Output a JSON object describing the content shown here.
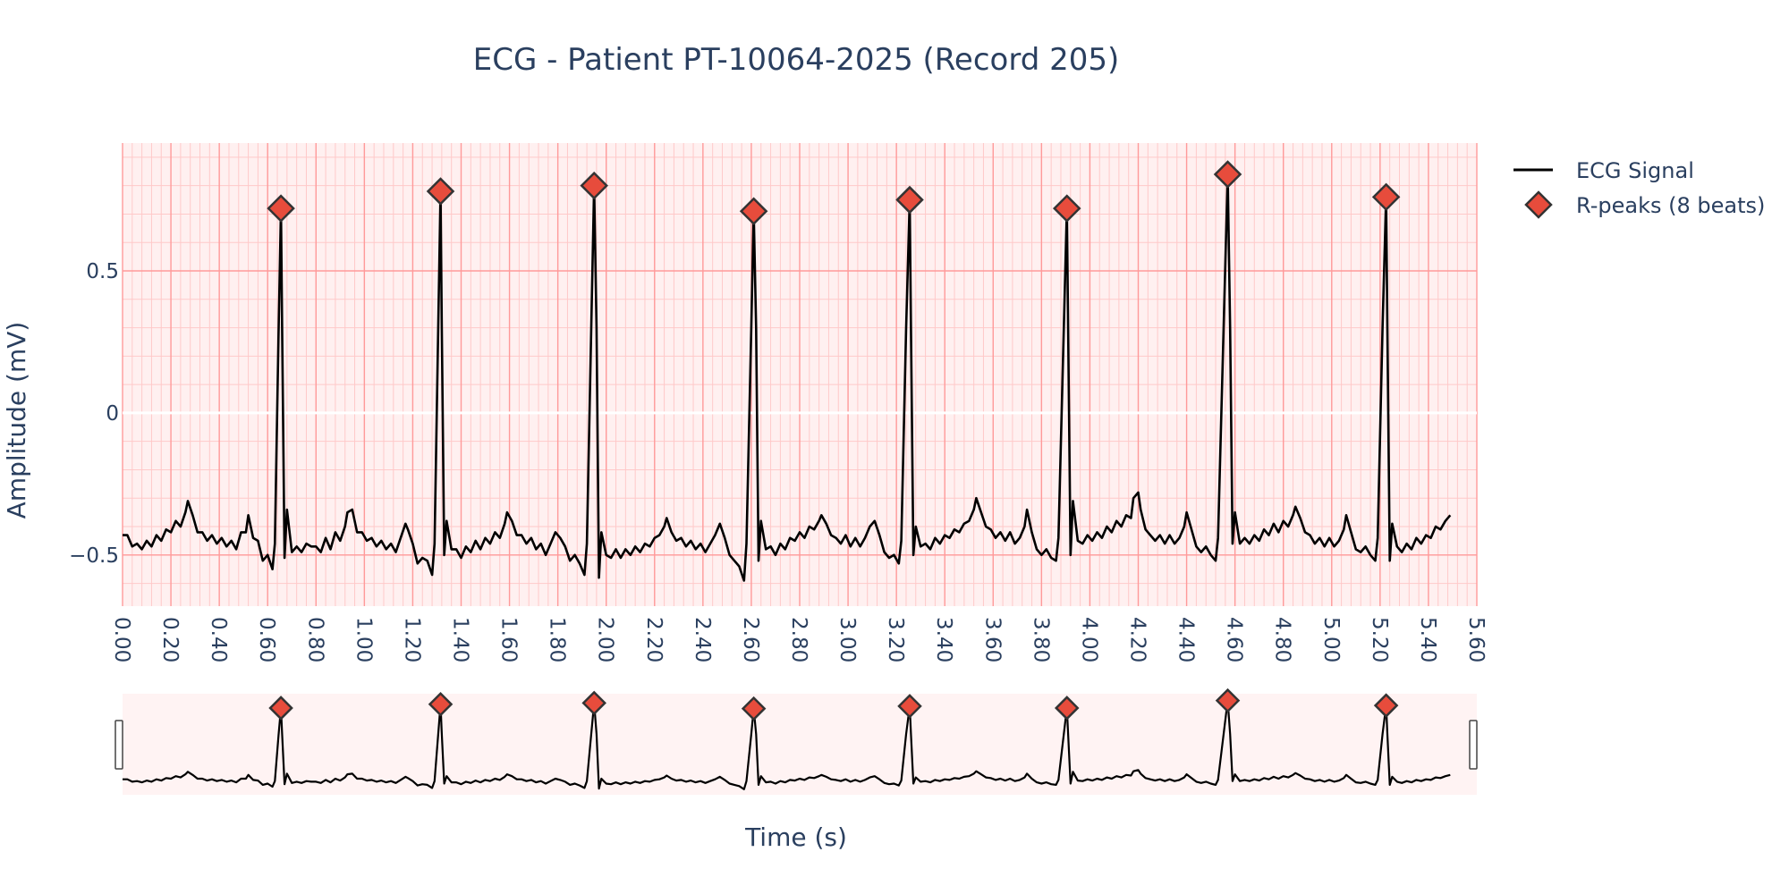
{
  "chart_data": {
    "type": "line",
    "title": "ECG - Patient PT-10064-2025 (Record 205)",
    "xlabel": "Time (s)",
    "ylabel": "Amplitude (mV)",
    "xlim": [
      0,
      5.6
    ],
    "ylim": [
      -0.68,
      0.95
    ],
    "x_tick_labels": [
      "0.00",
      "0.20",
      "0.40",
      "0.60",
      "0.80",
      "1.00",
      "1.20",
      "1.40",
      "1.60",
      "1.80",
      "2.00",
      "2.20",
      "2.40",
      "2.60",
      "2.80",
      "3.00",
      "3.20",
      "3.40",
      "3.60",
      "3.80",
      "4.00",
      "4.20",
      "4.40",
      "4.60",
      "4.80",
      "5.00",
      "5.20",
      "5.40",
      "5.60"
    ],
    "y_tick_labels": [
      "0.5",
      "0",
      "−0.5"
    ],
    "grid": true,
    "legend_position": "top-right",
    "range_slider": true,
    "colors": {
      "signal": "#000000",
      "marker_fill": "#e74c3c",
      "marker_edge": "#333333",
      "paper_grid_bg": "#fff0f0"
    },
    "series": [
      {
        "name": "ECG Signal",
        "type": "line",
        "points": [
          [
            0.0,
            -0.43
          ],
          [
            0.02,
            -0.43
          ],
          [
            0.04,
            -0.47
          ],
          [
            0.06,
            -0.46
          ],
          [
            0.08,
            -0.48
          ],
          [
            0.1,
            -0.45
          ],
          [
            0.12,
            -0.47
          ],
          [
            0.14,
            -0.43
          ],
          [
            0.16,
            -0.45
          ],
          [
            0.18,
            -0.41
          ],
          [
            0.2,
            -0.42
          ],
          [
            0.22,
            -0.38
          ],
          [
            0.24,
            -0.4
          ],
          [
            0.26,
            -0.35
          ],
          [
            0.27,
            -0.31
          ],
          [
            0.29,
            -0.36
          ],
          [
            0.31,
            -0.42
          ],
          [
            0.33,
            -0.42
          ],
          [
            0.35,
            -0.45
          ],
          [
            0.37,
            -0.43
          ],
          [
            0.39,
            -0.46
          ],
          [
            0.41,
            -0.44
          ],
          [
            0.43,
            -0.47
          ],
          [
            0.45,
            -0.45
          ],
          [
            0.47,
            -0.48
          ],
          [
            0.49,
            -0.42
          ],
          [
            0.51,
            -0.42
          ],
          [
            0.52,
            -0.36
          ],
          [
            0.54,
            -0.44
          ],
          [
            0.56,
            -0.45
          ],
          [
            0.58,
            -0.52
          ],
          [
            0.6,
            -0.5
          ],
          [
            0.62,
            -0.55
          ],
          [
            0.63,
            -0.46
          ],
          [
            0.645,
            0.28
          ],
          [
            0.655,
            0.72
          ],
          [
            0.66,
            0.3
          ],
          [
            0.67,
            -0.51
          ],
          [
            0.68,
            -0.34
          ],
          [
            0.7,
            -0.49
          ],
          [
            0.72,
            -0.47
          ],
          [
            0.74,
            -0.49
          ],
          [
            0.76,
            -0.46
          ],
          [
            0.78,
            -0.47
          ],
          [
            0.8,
            -0.47
          ],
          [
            0.82,
            -0.49
          ],
          [
            0.84,
            -0.44
          ],
          [
            0.86,
            -0.48
          ],
          [
            0.88,
            -0.42
          ],
          [
            0.9,
            -0.45
          ],
          [
            0.92,
            -0.4
          ],
          [
            0.93,
            -0.35
          ],
          [
            0.95,
            -0.34
          ],
          [
            0.97,
            -0.42
          ],
          [
            0.99,
            -0.42
          ],
          [
            1.01,
            -0.45
          ],
          [
            1.03,
            -0.44
          ],
          [
            1.05,
            -0.47
          ],
          [
            1.07,
            -0.45
          ],
          [
            1.09,
            -0.48
          ],
          [
            1.11,
            -0.46
          ],
          [
            1.13,
            -0.49
          ],
          [
            1.15,
            -0.44
          ],
          [
            1.17,
            -0.39
          ],
          [
            1.18,
            -0.41
          ],
          [
            1.2,
            -0.46
          ],
          [
            1.22,
            -0.53
          ],
          [
            1.24,
            -0.51
          ],
          [
            1.26,
            -0.52
          ],
          [
            1.28,
            -0.57
          ],
          [
            1.29,
            -0.46
          ],
          [
            1.305,
            0.28
          ],
          [
            1.315,
            0.78
          ],
          [
            1.32,
            0.3
          ],
          [
            1.33,
            -0.5
          ],
          [
            1.34,
            -0.38
          ],
          [
            1.36,
            -0.48
          ],
          [
            1.38,
            -0.48
          ],
          [
            1.4,
            -0.51
          ],
          [
            1.42,
            -0.47
          ],
          [
            1.44,
            -0.49
          ],
          [
            1.46,
            -0.45
          ],
          [
            1.48,
            -0.48
          ],
          [
            1.5,
            -0.44
          ],
          [
            1.52,
            -0.46
          ],
          [
            1.54,
            -0.42
          ],
          [
            1.56,
            -0.44
          ],
          [
            1.58,
            -0.39
          ],
          [
            1.59,
            -0.35
          ],
          [
            1.61,
            -0.38
          ],
          [
            1.63,
            -0.43
          ],
          [
            1.65,
            -0.43
          ],
          [
            1.67,
            -0.46
          ],
          [
            1.69,
            -0.44
          ],
          [
            1.71,
            -0.48
          ],
          [
            1.73,
            -0.46
          ],
          [
            1.75,
            -0.5
          ],
          [
            1.77,
            -0.46
          ],
          [
            1.79,
            -0.42
          ],
          [
            1.81,
            -0.44
          ],
          [
            1.83,
            -0.47
          ],
          [
            1.85,
            -0.52
          ],
          [
            1.87,
            -0.5
          ],
          [
            1.89,
            -0.53
          ],
          [
            1.91,
            -0.57
          ],
          [
            1.92,
            -0.46
          ],
          [
            1.95,
            0.8
          ],
          [
            1.96,
            0.3
          ],
          [
            1.97,
            -0.58
          ],
          [
            1.98,
            -0.42
          ],
          [
            2.0,
            -0.5
          ],
          [
            2.02,
            -0.51
          ],
          [
            2.04,
            -0.48
          ],
          [
            2.06,
            -0.51
          ],
          [
            2.08,
            -0.48
          ],
          [
            2.1,
            -0.5
          ],
          [
            2.12,
            -0.47
          ],
          [
            2.14,
            -0.49
          ],
          [
            2.16,
            -0.46
          ],
          [
            2.18,
            -0.47
          ],
          [
            2.2,
            -0.44
          ],
          [
            2.22,
            -0.43
          ],
          [
            2.24,
            -0.4
          ],
          [
            2.25,
            -0.37
          ],
          [
            2.27,
            -0.42
          ],
          [
            2.29,
            -0.45
          ],
          [
            2.31,
            -0.44
          ],
          [
            2.33,
            -0.47
          ],
          [
            2.35,
            -0.45
          ],
          [
            2.37,
            -0.48
          ],
          [
            2.39,
            -0.46
          ],
          [
            2.41,
            -0.49
          ],
          [
            2.43,
            -0.46
          ],
          [
            2.45,
            -0.43
          ],
          [
            2.47,
            -0.39
          ],
          [
            2.49,
            -0.44
          ],
          [
            2.51,
            -0.5
          ],
          [
            2.53,
            -0.52
          ],
          [
            2.55,
            -0.54
          ],
          [
            2.57,
            -0.59
          ],
          [
            2.58,
            -0.46
          ],
          [
            2.6,
            0.3
          ],
          [
            2.61,
            0.71
          ],
          [
            2.62,
            0.3
          ],
          [
            2.63,
            -0.52
          ],
          [
            2.64,
            -0.38
          ],
          [
            2.66,
            -0.48
          ],
          [
            2.68,
            -0.47
          ],
          [
            2.7,
            -0.5
          ],
          [
            2.72,
            -0.46
          ],
          [
            2.74,
            -0.48
          ],
          [
            2.76,
            -0.44
          ],
          [
            2.78,
            -0.45
          ],
          [
            2.8,
            -0.42
          ],
          [
            2.82,
            -0.44
          ],
          [
            2.84,
            -0.4
          ],
          [
            2.86,
            -0.41
          ],
          [
            2.88,
            -0.38
          ],
          [
            2.89,
            -0.36
          ],
          [
            2.91,
            -0.39
          ],
          [
            2.93,
            -0.43
          ],
          [
            2.95,
            -0.44
          ],
          [
            2.97,
            -0.46
          ],
          [
            2.99,
            -0.43
          ],
          [
            3.01,
            -0.47
          ],
          [
            3.03,
            -0.44
          ],
          [
            3.05,
            -0.47
          ],
          [
            3.07,
            -0.44
          ],
          [
            3.09,
            -0.4
          ],
          [
            3.11,
            -0.38
          ],
          [
            3.13,
            -0.43
          ],
          [
            3.15,
            -0.49
          ],
          [
            3.17,
            -0.51
          ],
          [
            3.19,
            -0.5
          ],
          [
            3.21,
            -0.53
          ],
          [
            3.22,
            -0.45
          ],
          [
            3.24,
            0.3
          ],
          [
            3.255,
            0.75
          ],
          [
            3.26,
            0.3
          ],
          [
            3.27,
            -0.5
          ],
          [
            3.28,
            -0.4
          ],
          [
            3.3,
            -0.47
          ],
          [
            3.32,
            -0.46
          ],
          [
            3.34,
            -0.48
          ],
          [
            3.36,
            -0.44
          ],
          [
            3.38,
            -0.46
          ],
          [
            3.4,
            -0.43
          ],
          [
            3.42,
            -0.44
          ],
          [
            3.44,
            -0.41
          ],
          [
            3.46,
            -0.42
          ],
          [
            3.48,
            -0.39
          ],
          [
            3.5,
            -0.38
          ],
          [
            3.52,
            -0.34
          ],
          [
            3.53,
            -0.3
          ],
          [
            3.55,
            -0.35
          ],
          [
            3.57,
            -0.4
          ],
          [
            3.59,
            -0.41
          ],
          [
            3.61,
            -0.44
          ],
          [
            3.63,
            -0.42
          ],
          [
            3.65,
            -0.45
          ],
          [
            3.67,
            -0.42
          ],
          [
            3.69,
            -0.46
          ],
          [
            3.71,
            -0.44
          ],
          [
            3.73,
            -0.4
          ],
          [
            3.74,
            -0.34
          ],
          [
            3.76,
            -0.42
          ],
          [
            3.78,
            -0.48
          ],
          [
            3.8,
            -0.5
          ],
          [
            3.82,
            -0.48
          ],
          [
            3.84,
            -0.51
          ],
          [
            3.86,
            -0.52
          ],
          [
            3.87,
            -0.44
          ],
          [
            3.905,
            0.72
          ],
          [
            3.91,
            0.3
          ],
          [
            3.92,
            -0.5
          ],
          [
            3.93,
            -0.31
          ],
          [
            3.95,
            -0.45
          ],
          [
            3.97,
            -0.46
          ],
          [
            3.99,
            -0.43
          ],
          [
            4.01,
            -0.45
          ],
          [
            4.03,
            -0.42
          ],
          [
            4.05,
            -0.44
          ],
          [
            4.07,
            -0.4
          ],
          [
            4.09,
            -0.42
          ],
          [
            4.11,
            -0.38
          ],
          [
            4.13,
            -0.4
          ],
          [
            4.15,
            -0.36
          ],
          [
            4.17,
            -0.37
          ],
          [
            4.18,
            -0.3
          ],
          [
            4.2,
            -0.28
          ],
          [
            4.21,
            -0.34
          ],
          [
            4.23,
            -0.41
          ],
          [
            4.25,
            -0.43
          ],
          [
            4.27,
            -0.45
          ],
          [
            4.29,
            -0.43
          ],
          [
            4.31,
            -0.46
          ],
          [
            4.33,
            -0.43
          ],
          [
            4.35,
            -0.46
          ],
          [
            4.37,
            -0.44
          ],
          [
            4.39,
            -0.4
          ],
          [
            4.4,
            -0.35
          ],
          [
            4.42,
            -0.41
          ],
          [
            4.44,
            -0.47
          ],
          [
            4.46,
            -0.49
          ],
          [
            4.48,
            -0.47
          ],
          [
            4.5,
            -0.5
          ],
          [
            4.52,
            -0.52
          ],
          [
            4.53,
            -0.44
          ],
          [
            4.57,
            0.84
          ],
          [
            4.58,
            0.3
          ],
          [
            4.59,
            -0.46
          ],
          [
            4.6,
            -0.35
          ],
          [
            4.62,
            -0.46
          ],
          [
            4.64,
            -0.44
          ],
          [
            4.66,
            -0.46
          ],
          [
            4.68,
            -0.43
          ],
          [
            4.7,
            -0.45
          ],
          [
            4.72,
            -0.41
          ],
          [
            4.74,
            -0.43
          ],
          [
            4.76,
            -0.39
          ],
          [
            4.78,
            -0.42
          ],
          [
            4.8,
            -0.38
          ],
          [
            4.82,
            -0.4
          ],
          [
            4.84,
            -0.36
          ],
          [
            4.85,
            -0.33
          ],
          [
            4.87,
            -0.37
          ],
          [
            4.89,
            -0.42
          ],
          [
            4.91,
            -0.43
          ],
          [
            4.93,
            -0.46
          ],
          [
            4.95,
            -0.44
          ],
          [
            4.97,
            -0.47
          ],
          [
            4.99,
            -0.44
          ],
          [
            5.01,
            -0.47
          ],
          [
            5.03,
            -0.45
          ],
          [
            5.05,
            -0.41
          ],
          [
            5.06,
            -0.36
          ],
          [
            5.08,
            -0.42
          ],
          [
            5.1,
            -0.48
          ],
          [
            5.12,
            -0.49
          ],
          [
            5.14,
            -0.47
          ],
          [
            5.16,
            -0.5
          ],
          [
            5.18,
            -0.52
          ],
          [
            5.19,
            -0.44
          ],
          [
            5.21,
            0.3
          ],
          [
            5.225,
            0.76
          ],
          [
            5.23,
            0.3
          ],
          [
            5.24,
            -0.52
          ],
          [
            5.25,
            -0.39
          ],
          [
            5.27,
            -0.47
          ],
          [
            5.29,
            -0.49
          ],
          [
            5.31,
            -0.46
          ],
          [
            5.33,
            -0.48
          ],
          [
            5.35,
            -0.44
          ],
          [
            5.37,
            -0.46
          ],
          [
            5.39,
            -0.43
          ],
          [
            5.41,
            -0.44
          ],
          [
            5.43,
            -0.4
          ],
          [
            5.45,
            -0.41
          ],
          [
            5.47,
            -0.38
          ],
          [
            5.49,
            -0.36
          ]
        ]
      },
      {
        "name": "R-peaks (8 beats)",
        "type": "scatter",
        "marker": "diamond",
        "x": [
          0.655,
          1.315,
          1.95,
          2.61,
          3.255,
          3.905,
          4.57,
          5.225
        ],
        "y": [
          0.72,
          0.78,
          0.8,
          0.71,
          0.75,
          0.72,
          0.84,
          0.76
        ]
      }
    ]
  }
}
